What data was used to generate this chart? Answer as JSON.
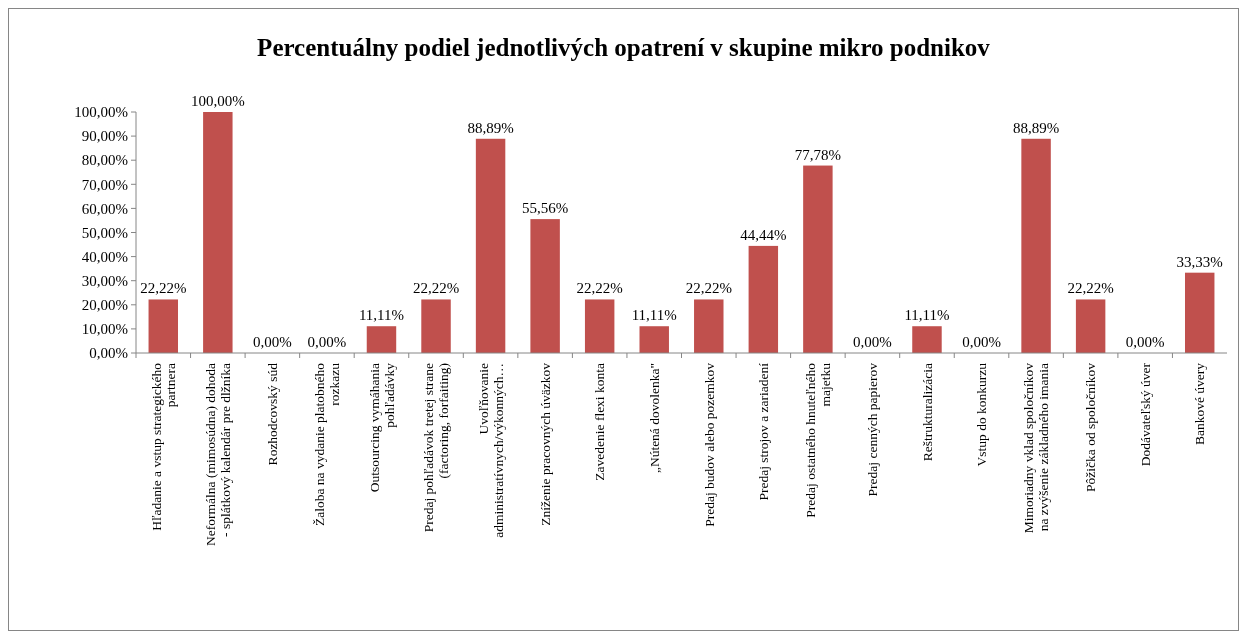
{
  "chart_data": {
    "type": "bar",
    "title": "Percentuálny podiel jednotlivých opatrení v skupine mikro podnikov",
    "categories": [
      "Hľadanie a vstup strategického\npartnera",
      "Neformálna (mimosúdna) dohoda\n- splátkový kalendár pre dlžníka",
      "Rozhodcovský súd",
      "Žaloba na vydanie platobného\nrozkazu",
      "Outsourcing vymáhania\npohľadávky",
      "Predaj pohľadávok tretej strane\n(factoring, forfaiting)",
      "Uvoľňovanie\nadministratívnych/výkonných…",
      "Zníženie pracovných úväzkov",
      "Zavedenie flexi konta",
      "„Nútená dovolenka\"",
      "Predaj budov alebo pozemkov",
      "Predaj strojov a zariadení",
      "Predaj ostatného hnuteľného\nmajetku",
      "Predaj cenných papierov",
      "Reštrukturalizácia",
      "Vstup do konkurzu",
      "Mimoriadny vklad spoločníkov\nna zvýšenie základného imania",
      "Pôžička od spoločníkov",
      "Dodávateľský úver",
      "Bankové úvery"
    ],
    "values": [
      22.22,
      100,
      0,
      0,
      11.11,
      22.22,
      88.89,
      55.56,
      22.22,
      11.11,
      22.22,
      44.44,
      77.78,
      0,
      11.11,
      0,
      88.89,
      22.22,
      0,
      33.33
    ],
    "value_labels": [
      "22,22%",
      "100,00%",
      "0,00%",
      "0,00%",
      "11,11%",
      "22,22%",
      "88,89%",
      "55,56%",
      "22,22%",
      "11,11%",
      "22,22%",
      "44,44%",
      "77,78%",
      "0,00%",
      "11,11%",
      "0,00%",
      "88,89%",
      "22,22%",
      "0,00%",
      "33,33%"
    ],
    "color": "#c0504d",
    "ylim": [
      0,
      100
    ],
    "yticks": [
      {
        "value": 0,
        "label": "0,00%"
      },
      {
        "value": 10,
        "label": "10,00%"
      },
      {
        "value": 20,
        "label": "20,00%"
      },
      {
        "value": 30,
        "label": "30,00%"
      },
      {
        "value": 40,
        "label": "40,00%"
      },
      {
        "value": 50,
        "label": "50,00%"
      },
      {
        "value": 60,
        "label": "60,00%"
      },
      {
        "value": 70,
        "label": "70,00%"
      },
      {
        "value": 80,
        "label": "80,00%"
      },
      {
        "value": 90,
        "label": "90,00%"
      },
      {
        "value": 100,
        "label": "100,00%"
      }
    ],
    "grid": false
  }
}
